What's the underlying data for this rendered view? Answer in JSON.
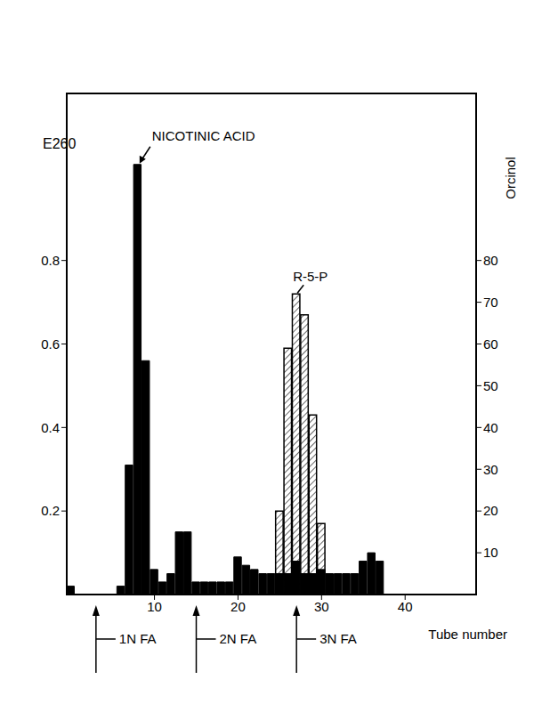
{
  "chart_data": {
    "type": "bar",
    "x": [
      0,
      1,
      2,
      3,
      4,
      5,
      6,
      7,
      8,
      9,
      10,
      11,
      12,
      13,
      14,
      15,
      16,
      17,
      18,
      19,
      20,
      21,
      22,
      23,
      24,
      25,
      26,
      27,
      28,
      29,
      30,
      31,
      32,
      33,
      34,
      35,
      36,
      37
    ],
    "xlim": [
      -0.5,
      48.5
    ],
    "xticks": [
      10,
      20,
      30,
      40
    ],
    "x_label": "Tube number",
    "y_label": "E260",
    "ylim": [
      0,
      1.2
    ],
    "yticks": [
      0.2,
      0.4,
      0.6,
      0.8
    ],
    "y2_label": "Orcinol",
    "y2lim": [
      0,
      120
    ],
    "y2ticks": [
      10,
      20,
      30,
      40,
      50,
      60,
      70,
      80
    ],
    "grid": false,
    "series": [
      {
        "name": "E260",
        "type": "bar",
        "color": "#000000",
        "values": [
          0.02,
          null,
          null,
          null,
          null,
          null,
          0.02,
          0.31,
          1.03,
          0.56,
          0.06,
          0.03,
          0.05,
          0.15,
          0.15,
          0.03,
          0.03,
          0.03,
          0.03,
          0.03,
          0.09,
          0.07,
          0.06,
          0.05,
          0.05,
          0.05,
          0.05,
          0.08,
          0.05,
          0.05,
          0.06,
          0.05,
          0.05,
          0.05,
          0.05,
          0.08,
          0.1,
          0.08
        ]
      },
      {
        "name": "Orcinol",
        "type": "bar",
        "color": "#000000",
        "axis": "y2",
        "values": [
          null,
          null,
          null,
          null,
          null,
          null,
          null,
          null,
          null,
          null,
          null,
          null,
          null,
          null,
          null,
          null,
          null,
          null,
          null,
          null,
          null,
          null,
          null,
          null,
          null,
          20,
          59,
          72,
          67,
          43,
          17,
          null,
          null,
          null,
          null,
          null,
          null,
          null
        ]
      }
    ],
    "annotations": [
      {
        "text": "NICOTINIC ACID",
        "series": "E260"
      },
      {
        "text": "R-5-P",
        "series": "Orcinol"
      },
      {
        "text": "1N FA",
        "x": 3
      },
      {
        "text": "2N FA",
        "x": 15
      },
      {
        "text": "3N FA",
        "x": 27
      }
    ]
  }
}
